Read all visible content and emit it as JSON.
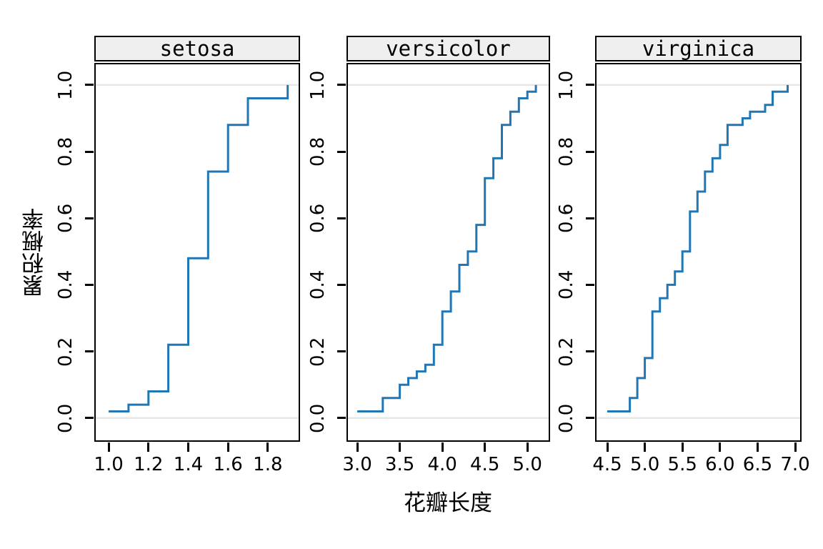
{
  "figure": {
    "background": "#ffffff"
  },
  "chart_data": {
    "type": "line",
    "subtype": "ecdf-step",
    "title": "",
    "xlabel": "花瓣长度",
    "ylabel": "累积概率",
    "legend": "none",
    "grid": "horizontal reference lines at y=0 and y=1 only",
    "ylim": [
      -0.067,
      1.062
    ],
    "yticks": {
      "values": [
        0.0,
        0.2,
        0.4,
        0.6,
        0.8,
        1.0
      ],
      "labels": [
        "0.0",
        "0.2",
        "0.4",
        "0.6",
        "0.8",
        "1.0"
      ]
    },
    "colors": {
      "line": "#2077b4",
      "grid": "#e7e7e7",
      "strip_fill": "#efefef",
      "border": "#000000",
      "text": "#000000"
    },
    "panels": [
      {
        "label": "setosa",
        "xlim": [
          0.935,
          1.955
        ],
        "xticks": {
          "values": [
            1.0,
            1.2,
            1.4,
            1.6,
            1.8
          ],
          "labels": [
            "1.0",
            "1.2",
            "1.4",
            "1.6",
            "1.8"
          ]
        },
        "x": [
          1.0,
          1.1,
          1.2,
          1.3,
          1.4,
          1.5,
          1.6,
          1.7,
          1.9
        ],
        "cumprob": [
          0.02,
          0.04,
          0.08,
          0.22,
          0.48,
          0.74,
          0.88,
          0.96,
          1.0
        ]
      },
      {
        "label": "versicolor",
        "xlim": [
          2.89,
          5.25
        ],
        "xticks": {
          "values": [
            3.0,
            3.5,
            4.0,
            4.5,
            5.0
          ],
          "labels": [
            "3.0",
            "3.5",
            "4.0",
            "4.5",
            "5.0"
          ]
        },
        "x": [
          3.0,
          3.3,
          3.5,
          3.6,
          3.7,
          3.8,
          3.9,
          4.0,
          4.1,
          4.2,
          4.3,
          4.4,
          4.5,
          4.6,
          4.7,
          4.8,
          4.9,
          5.0,
          5.1
        ],
        "cumprob": [
          0.02,
          0.06,
          0.1,
          0.12,
          0.14,
          0.16,
          0.22,
          0.32,
          0.38,
          0.46,
          0.5,
          0.58,
          0.72,
          0.78,
          0.88,
          0.92,
          0.96,
          0.98,
          1.0
        ]
      },
      {
        "label": "virginica",
        "xlim": [
          4.357,
          7.066
        ],
        "xticks": {
          "values": [
            4.5,
            5.0,
            5.5,
            6.0,
            6.5,
            7.0
          ],
          "labels": [
            "4.5",
            "5.0",
            "5.5",
            "6.0",
            "6.5",
            "7.0"
          ]
        },
        "x": [
          4.5,
          4.8,
          4.9,
          5.0,
          5.1,
          5.2,
          5.3,
          5.4,
          5.5,
          5.6,
          5.7,
          5.8,
          5.9,
          6.0,
          6.1,
          6.3,
          6.4,
          6.6,
          6.7,
          6.9
        ],
        "cumprob": [
          0.02,
          0.06,
          0.12,
          0.18,
          0.32,
          0.36,
          0.4,
          0.44,
          0.5,
          0.62,
          0.68,
          0.74,
          0.78,
          0.82,
          0.88,
          0.9,
          0.92,
          0.94,
          0.98,
          1.0
        ]
      }
    ]
  }
}
